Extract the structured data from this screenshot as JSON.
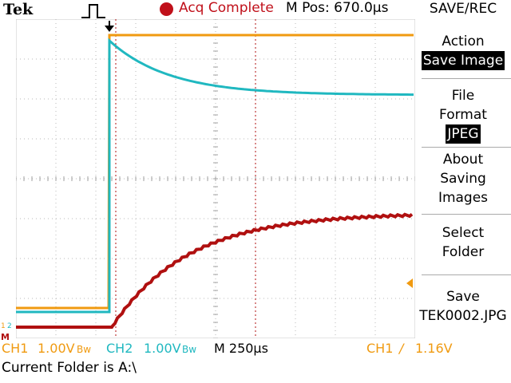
{
  "header": {
    "brand": "Tek",
    "acq_status": "Acq Complete",
    "m_pos": "M Pos: 670.0μs"
  },
  "menu": {
    "title": "SAVE/REC",
    "action_label": "Action",
    "action_value": "Save Image",
    "file_format_line1": "File",
    "file_format_line2": "Format",
    "file_format_value": "JPEG",
    "about_line1": "About",
    "about_line2": "Saving",
    "about_line3": "Images",
    "select_line1": "Select",
    "select_line2": "Folder",
    "save_line1": "Save",
    "save_line2": "TEK0002.JPG"
  },
  "status": {
    "ch1_label": "CH1",
    "ch1_scale": "1.00V",
    "bw1": "Bw",
    "ch2_label": "CH2",
    "ch2_scale": "1.00V",
    "bw2": "Bw",
    "timebase": "M 250μs",
    "trigger_source": "CH1",
    "trigger_slope": "/",
    "trigger_level": "1.16V"
  },
  "footer": {
    "folder": "Current Folder is A:\\"
  },
  "colors": {
    "ch1": "#f09a10",
    "ch2": "#20b8c0",
    "math": "#b01010",
    "acq": "#c0101a"
  },
  "markers": {
    "ch1_marker": "1",
    "ch2_marker": "2",
    "math_marker": "M"
  },
  "icons": {
    "trigger_pulse": "pulse-icon",
    "trigger_position": "arrow-down-icon",
    "trigger_level": "arrow-left-icon"
  }
}
